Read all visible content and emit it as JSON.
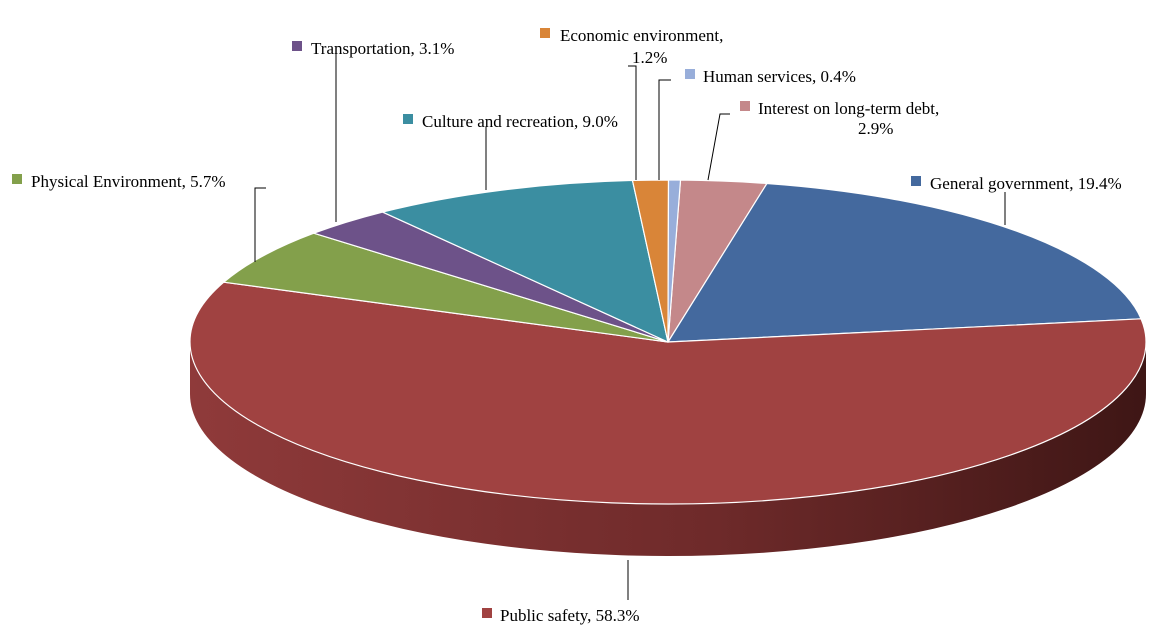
{
  "chart_data": {
    "type": "pie",
    "style": "3d",
    "categories": [
      "Interest on long-term debt",
      "General government",
      "Public safety",
      "Physical Environment",
      "Transportation",
      "Culture and recreation",
      "Economic environment",
      "Human services"
    ],
    "values": [
      2.9,
      19.4,
      58.3,
      5.7,
      3.1,
      9.0,
      1.2,
      0.4
    ],
    "labels": [
      {
        "name": "Interest on long-term debt",
        "line1": "Interest on long-term  debt,",
        "line2": "2.9%"
      },
      {
        "name": "General government",
        "line1": "General government, 19.4%"
      },
      {
        "name": "Public safety",
        "line1": "Public safety, 58.3%"
      },
      {
        "name": "Physical Environment",
        "line1": "Physical Environment,  5.7%"
      },
      {
        "name": "Transportation",
        "line1": "Transportation, 3.1%"
      },
      {
        "name": "Culture and recreation",
        "line1": "Culture  and recreation, 9.0%"
      },
      {
        "name": "Economic environment",
        "line1": "Economic environment,",
        "line2": "1.2%"
      },
      {
        "name": "Human services",
        "line1": "Human services, 0.4%"
      }
    ],
    "colors": [
      "#C4888A",
      "#44699E",
      "#A04241",
      "#83A04B",
      "#6D5289",
      "#3B8EA1",
      "#D98538",
      "#98AEDA"
    ],
    "legend": "none",
    "title": ""
  }
}
